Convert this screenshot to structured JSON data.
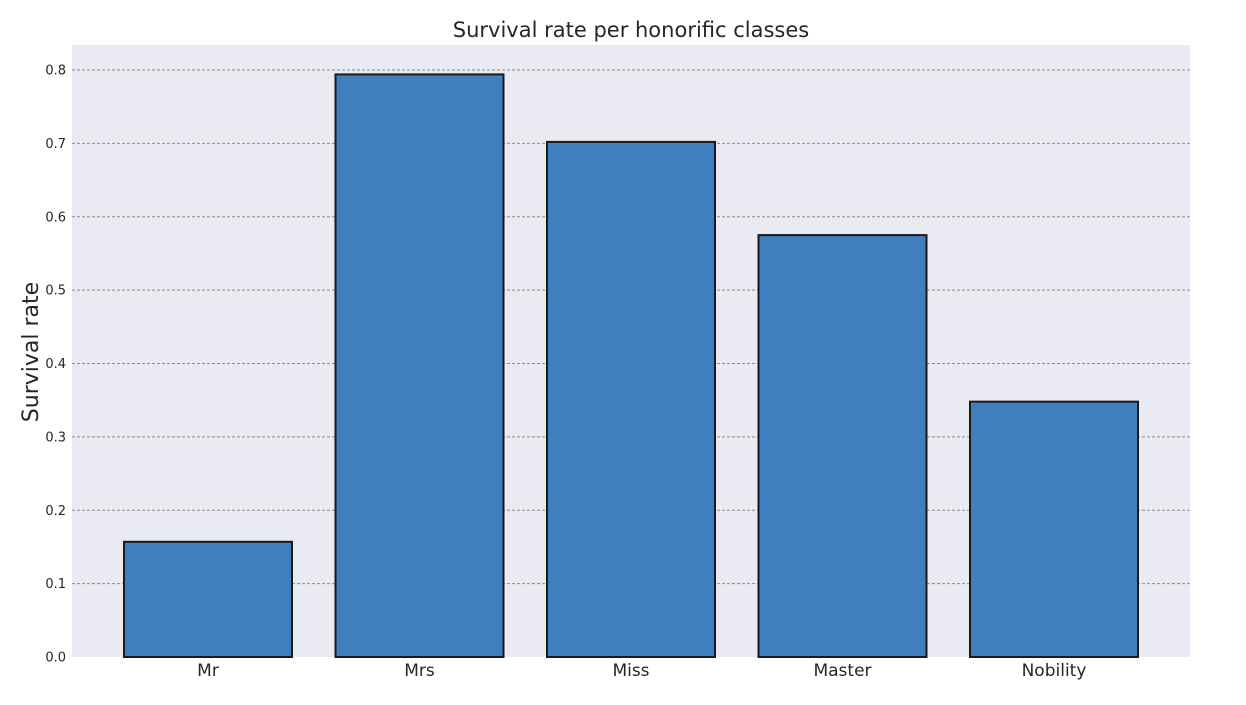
{
  "chart_data": {
    "type": "bar",
    "title": "Survival rate per honorific classes",
    "xlabel": "",
    "ylabel": "Survival rate",
    "categories": [
      "Mr",
      "Mrs",
      "Miss",
      "Master",
      "Nobility"
    ],
    "values": [
      0.157,
      0.794,
      0.702,
      0.575,
      0.348
    ],
    "ylim": [
      0.0,
      0.83
    ],
    "yticks": [
      "0.0",
      "0.1",
      "0.2",
      "0.3",
      "0.4",
      "0.5",
      "0.6",
      "0.7",
      "0.8"
    ],
    "ytick_values": [
      0.0,
      0.1,
      0.2,
      0.3,
      0.4,
      0.5,
      0.6,
      0.7,
      0.8
    ],
    "grid": "horizontal-dashed",
    "colors": {
      "bar_fill": "#3f7ebf",
      "bar_edge": "#1a1a1a",
      "plot_background": "#eaeaf2",
      "grid_line": "#8c8c8c"
    }
  }
}
